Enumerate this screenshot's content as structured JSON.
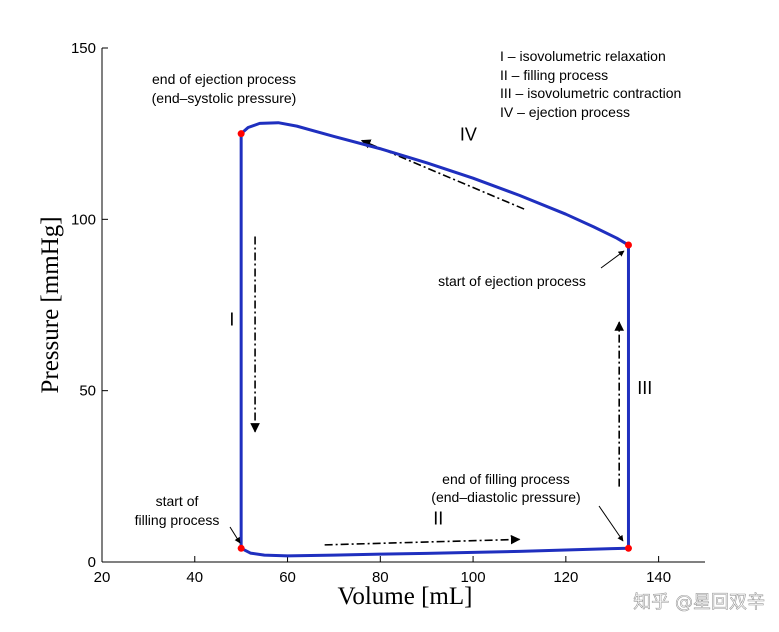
{
  "chart_data": {
    "type": "line",
    "xlabel": "Volume [mL]",
    "ylabel": "Pressure [mmHg]",
    "xlim": [
      20,
      150
    ],
    "ylim": [
      0,
      150
    ],
    "x_ticks": [
      20,
      40,
      60,
      80,
      100,
      120,
      140
    ],
    "y_ticks": [
      0,
      50,
      100,
      150
    ],
    "series": [
      {
        "color": "#1f2fbf",
        "points": [
          [
            50,
            4
          ],
          [
            52,
            2.6
          ],
          [
            55,
            2.0
          ],
          [
            60,
            1.8
          ],
          [
            70,
            2.0
          ],
          [
            80,
            2.3
          ],
          [
            90,
            2.5
          ],
          [
            100,
            2.8
          ],
          [
            110,
            3.1
          ],
          [
            120,
            3.5
          ],
          [
            130,
            3.9
          ],
          [
            133.5,
            4
          ],
          [
            133.5,
            92.5
          ],
          [
            131,
            94.5
          ],
          [
            126,
            97.8
          ],
          [
            120,
            101.5
          ],
          [
            110,
            107
          ],
          [
            100,
            112
          ],
          [
            90,
            116.5
          ],
          [
            80,
            120.6
          ],
          [
            70,
            124.2
          ],
          [
            62,
            127.2
          ],
          [
            58,
            128.2
          ],
          [
            54,
            128
          ],
          [
            51.5,
            126.8
          ],
          [
            50,
            125
          ],
          [
            50,
            4
          ]
        ]
      }
    ],
    "markers": [
      {
        "x": 50,
        "y": 125,
        "color": "#ff0000"
      },
      {
        "x": 50,
        "y": 4,
        "color": "#ff0000"
      },
      {
        "x": 133.5,
        "y": 92.5,
        "color": "#ff0000"
      },
      {
        "x": 133.5,
        "y": 4,
        "color": "#ff0000"
      }
    ],
    "phase_labels": [
      {
        "text": "I",
        "x": 48,
        "y": 69
      },
      {
        "text": "II",
        "x": 92.5,
        "y": 11
      },
      {
        "text": "III",
        "x": 137,
        "y": 49
      },
      {
        "text": "IV",
        "x": 99,
        "y": 123
      }
    ],
    "direction_arrows": [
      {
        "from": [
          111,
          103
        ],
        "to": [
          76,
          123
        ]
      },
      {
        "from": [
          53,
          95
        ],
        "to": [
          53,
          38
        ]
      },
      {
        "from": [
          68,
          5
        ],
        "to": [
          110,
          6.6
        ]
      },
      {
        "from": [
          131.5,
          22
        ],
        "to": [
          131.5,
          70
        ]
      }
    ],
    "legend": [
      "I  – isovolumetric relaxation",
      "II  – filling process",
      "III – isovolumetric contraction",
      "IV – ejection process"
    ],
    "annotations": {
      "end_ejection": [
        "end of ejection process",
        "(end–systolic pressure)"
      ],
      "start_ejection": "start of ejection process",
      "start_filling": [
        "start of",
        "filling process"
      ],
      "end_filling": [
        "end of filling process",
        "(end–diastolic pressure)"
      ]
    }
  },
  "watermark": "知乎 @星回双辛"
}
